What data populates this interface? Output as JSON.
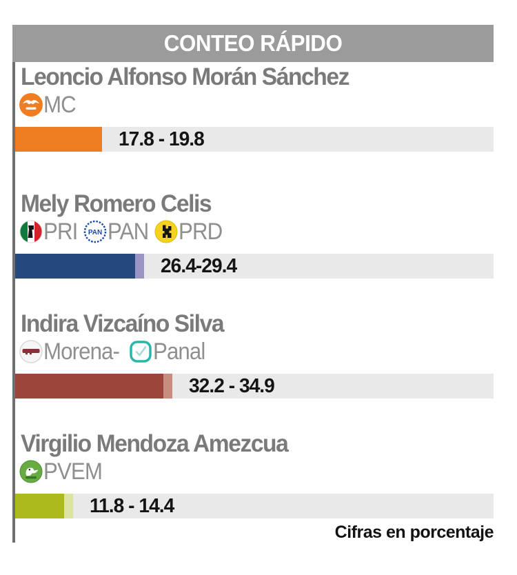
{
  "header": {
    "title": "CONTEO RÁPIDO"
  },
  "footer": {
    "note": "Cifras en porcentaje"
  },
  "colors": {
    "header_bg": "#9b9b9b",
    "panel_border": "#6f6f6f",
    "bar_track": "#e9e9e9",
    "name_text": "#7a7a7a",
    "value_text": "#141414"
  },
  "chart_data": {
    "type": "bar",
    "title": "CONTEO RÁPIDO",
    "note": "Cifras en porcentaje",
    "unit": "percent",
    "orientation": "horizontal",
    "candidates": [
      {
        "name": "Leoncio Alfonso Morán Sánchez",
        "parties": [
          {
            "label": "MC",
            "icon": "mc-logo",
            "color": "#ef7d22"
          }
        ],
        "range_low": 17.8,
        "range_high": 19.8,
        "range_label": "17.8 - 19.8",
        "bar_color": "#ef7d22",
        "cap_color": null
      },
      {
        "name": "Mely Romero Celis",
        "parties": [
          {
            "label": "PRI",
            "icon": "pri-logo",
            "color": "#0e7a3c"
          },
          {
            "label": "PAN",
            "icon": "pan-logo",
            "color": "#1b4a9e"
          },
          {
            "label": "PRD",
            "icon": "prd-logo",
            "color": "#f5d21f"
          }
        ],
        "range_low": 26.4,
        "range_high": 29.4,
        "range_label": "26.4-29.4",
        "bar_color": "#25497c",
        "cap_color": "#9a94c2"
      },
      {
        "name": "Indira Vizcaíno Silva",
        "parties": [
          {
            "label": "Morena-",
            "icon": "morena-logo",
            "color": "#8c2f39"
          },
          {
            "label": "Panal",
            "icon": "panal-logo",
            "color": "#29b6ab"
          }
        ],
        "range_low": 32.2,
        "range_high": 34.9,
        "range_label": "32.2 - 34.9",
        "bar_color": "#9c453a",
        "cap_color": "#c98d80"
      },
      {
        "name": "Virgilio Mendoza Amezcua",
        "parties": [
          {
            "label": "PVEM",
            "icon": "pvem-logo",
            "color": "#67ab42"
          }
        ],
        "range_low": 11.8,
        "range_high": 14.4,
        "range_label": "11.8 - 14.4",
        "bar_color": "#adba1e",
        "cap_color": "#dde3a0"
      }
    ]
  }
}
